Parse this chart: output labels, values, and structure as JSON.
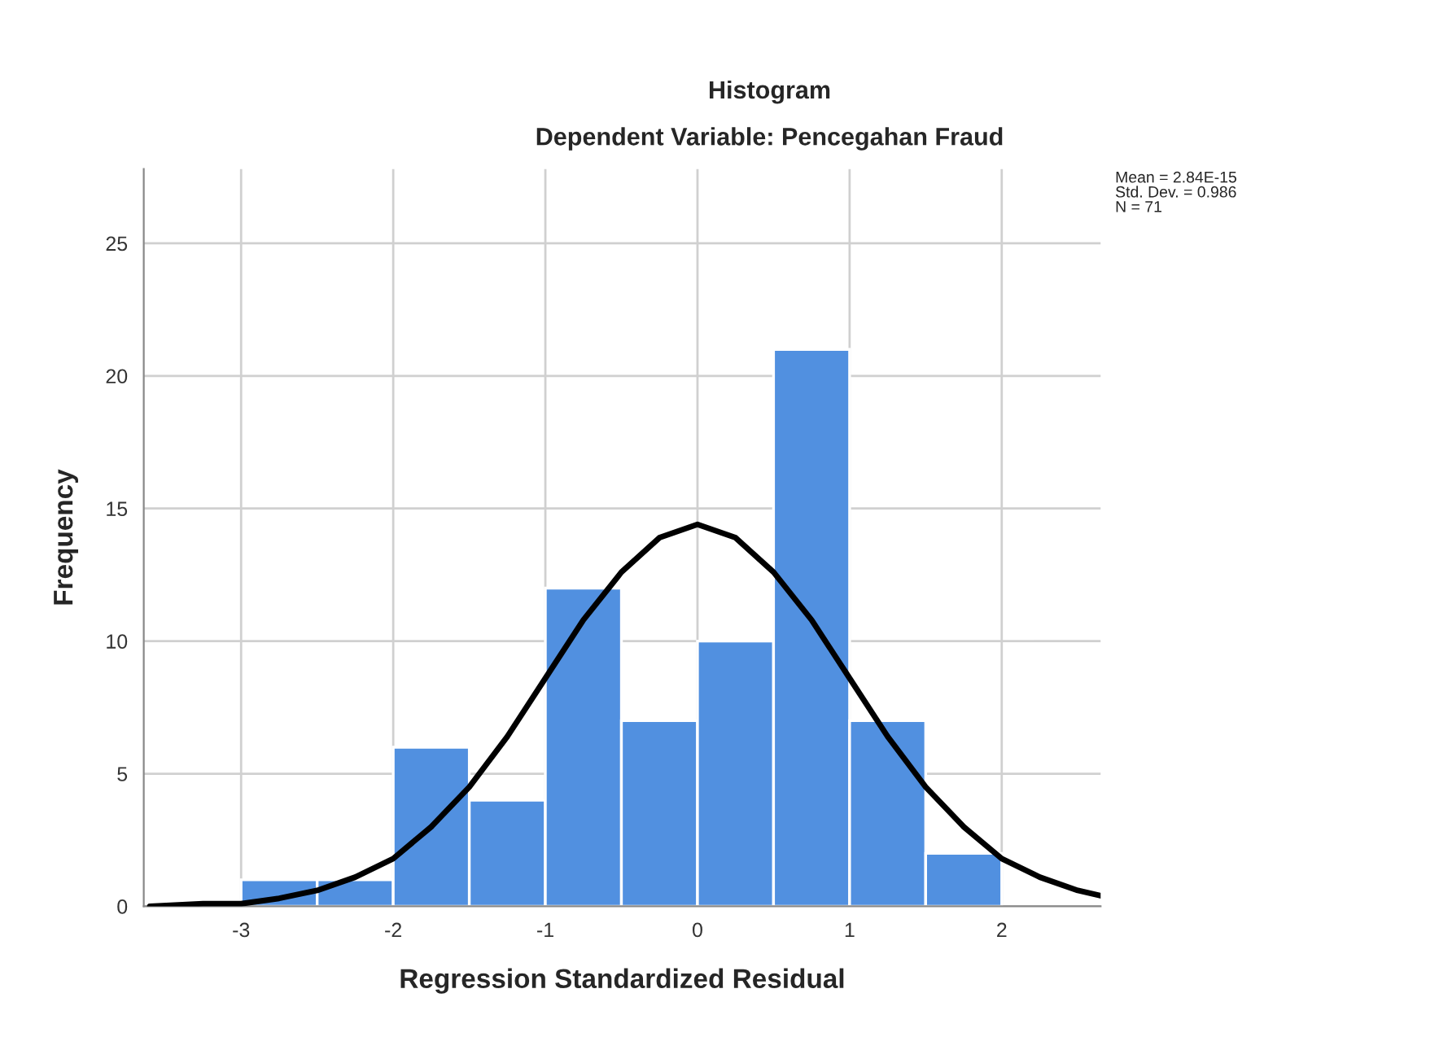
{
  "chart_data": {
    "type": "histogram",
    "title": "Histogram",
    "subtitle": "Dependent Variable: Pencegahan Fraud",
    "xlabel": "Regression Standardized Residual",
    "ylabel": "Frequency",
    "bins": [
      -3,
      -2.5,
      -2,
      -1.5,
      -1,
      -0.5,
      0,
      0.5,
      1,
      1.5,
      2
    ],
    "series": [
      {
        "color": "#5190e0",
        "values": [
          1,
          1,
          6,
          4,
          12,
          7,
          10,
          21,
          7,
          2
        ]
      },
      {
        "type": "line",
        "color": "#000000",
        "x": [
          -3.6,
          -3.25,
          -3,
          -2.75,
          -2.5,
          -2.25,
          -2,
          -1.75,
          -1.5,
          -1.25,
          -1,
          -0.75,
          -0.5,
          -0.25,
          0,
          0.25,
          0.5,
          0.75,
          1,
          1.25,
          1.5,
          1.75,
          2,
          2.25,
          2.5,
          2.65
        ],
        "values": [
          0.0,
          0.1,
          0.1,
          0.3,
          0.6,
          1.1,
          1.8,
          3.0,
          4.5,
          6.4,
          8.6,
          10.8,
          12.6,
          13.9,
          14.4,
          13.9,
          12.6,
          10.8,
          8.6,
          6.4,
          4.5,
          3.0,
          1.8,
          1.1,
          0.6,
          0.4
        ]
      }
    ],
    "xlim": [
      -3.64,
      2.65
    ],
    "ylim": [
      0,
      27.8
    ],
    "xticks": [
      -3,
      -2,
      -1,
      0,
      1,
      2
    ],
    "yticks": [
      0,
      5,
      10,
      15,
      20,
      25
    ],
    "grid": true,
    "annotations": [
      "Mean = 2.84E-15\nStd. Dev. = 0.986\nN = 71"
    ]
  }
}
